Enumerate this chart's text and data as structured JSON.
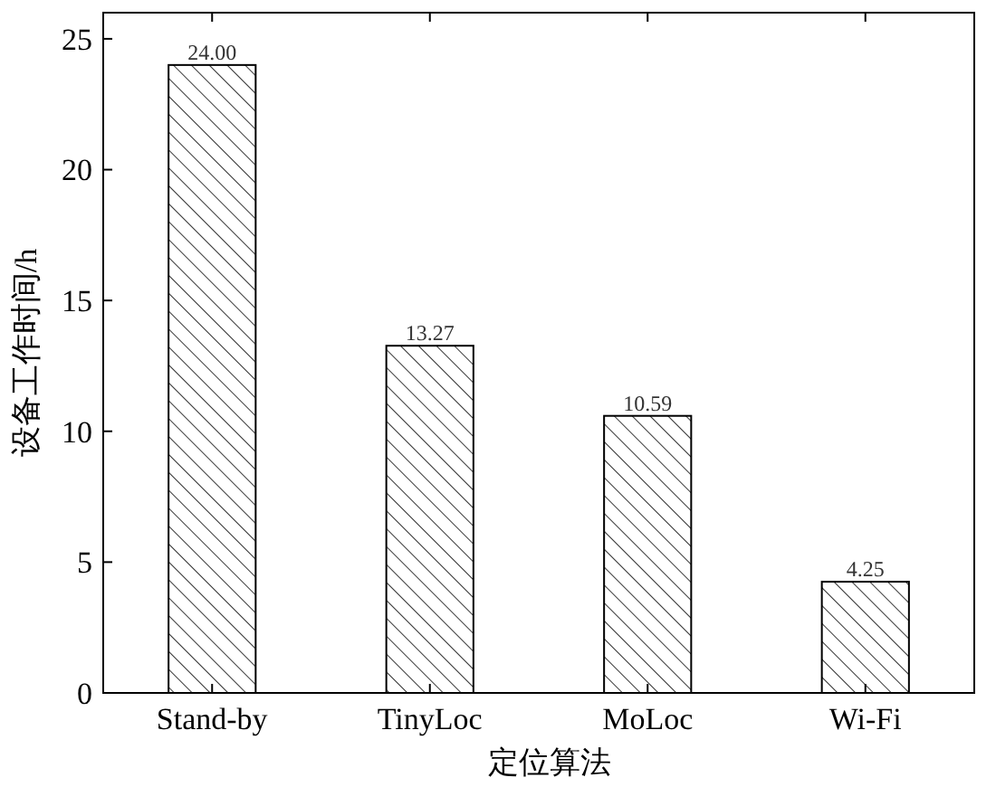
{
  "chart_data": {
    "type": "bar",
    "xlabel": "定位算法",
    "ylabel": "设备工作时间/h",
    "categories": [
      "Stand-by",
      "TinyLoc",
      "MoLoc",
      "Wi-Fi"
    ],
    "values": [
      24.0,
      13.27,
      10.59,
      4.25
    ],
    "value_labels": [
      "24.00",
      "13.27",
      "10.59",
      "4.25"
    ],
    "color": "#000000",
    "ylim": [
      0,
      26
    ],
    "yticks": [
      0,
      5,
      10,
      15,
      20,
      25
    ]
  }
}
